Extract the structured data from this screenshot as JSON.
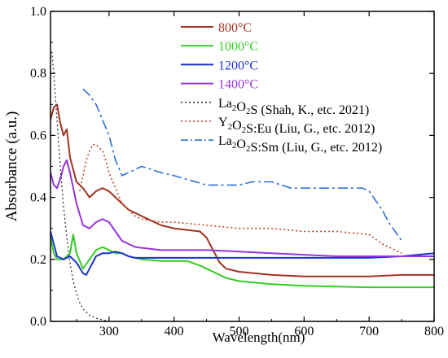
{
  "chart_data": {
    "type": "line",
    "xlabel": "Wavelength(nm)",
    "ylabel": "Absorbance (a.u.)",
    "xlim": [
      210,
      800
    ],
    "ylim": [
      0,
      1.0
    ],
    "xticks": [
      300,
      400,
      500,
      600,
      700,
      800
    ],
    "yticks": [
      0.0,
      0.2,
      0.4,
      0.6,
      0.8,
      1.0
    ],
    "xtick_labels": [
      "300",
      "400",
      "500",
      "600",
      "700",
      "800"
    ],
    "ytick_labels": [
      "0.0",
      "0.2",
      "0.4",
      "0.6",
      "0.8",
      "1.0"
    ],
    "grid": false,
    "legend_position": "top-right",
    "series": [
      {
        "name": "800°C",
        "color": "#a0331f",
        "dash": "solid",
        "width": 2,
        "points": [
          [
            210,
            0.65
          ],
          [
            215,
            0.69
          ],
          [
            220,
            0.7
          ],
          [
            225,
            0.64
          ],
          [
            230,
            0.6
          ],
          [
            235,
            0.62
          ],
          [
            240,
            0.53
          ],
          [
            250,
            0.45
          ],
          [
            260,
            0.43
          ],
          [
            270,
            0.4
          ],
          [
            280,
            0.42
          ],
          [
            290,
            0.43
          ],
          [
            300,
            0.42
          ],
          [
            310,
            0.4
          ],
          [
            320,
            0.38
          ],
          [
            330,
            0.36
          ],
          [
            340,
            0.35
          ],
          [
            350,
            0.34
          ],
          [
            360,
            0.33
          ],
          [
            380,
            0.31
          ],
          [
            400,
            0.3
          ],
          [
            420,
            0.295
          ],
          [
            440,
            0.29
          ],
          [
            450,
            0.27
          ],
          [
            460,
            0.23
          ],
          [
            470,
            0.19
          ],
          [
            480,
            0.17
          ],
          [
            500,
            0.16
          ],
          [
            550,
            0.15
          ],
          [
            600,
            0.145
          ],
          [
            650,
            0.145
          ],
          [
            700,
            0.145
          ],
          [
            750,
            0.15
          ],
          [
            800,
            0.15
          ]
        ]
      },
      {
        "name": "1000°C",
        "color": "#33cc22",
        "dash": "solid",
        "width": 2,
        "points": [
          [
            210,
            0.27
          ],
          [
            215,
            0.22
          ],
          [
            220,
            0.2
          ],
          [
            230,
            0.2
          ],
          [
            240,
            0.22
          ],
          [
            245,
            0.28
          ],
          [
            250,
            0.22
          ],
          [
            260,
            0.17
          ],
          [
            270,
            0.2
          ],
          [
            280,
            0.23
          ],
          [
            290,
            0.24
          ],
          [
            300,
            0.23
          ],
          [
            310,
            0.22
          ],
          [
            320,
            0.22
          ],
          [
            330,
            0.21
          ],
          [
            350,
            0.2
          ],
          [
            380,
            0.195
          ],
          [
            400,
            0.195
          ],
          [
            420,
            0.195
          ],
          [
            440,
            0.18
          ],
          [
            460,
            0.16
          ],
          [
            480,
            0.14
          ],
          [
            500,
            0.13
          ],
          [
            550,
            0.12
          ],
          [
            600,
            0.115
          ],
          [
            650,
            0.112
          ],
          [
            700,
            0.11
          ],
          [
            750,
            0.11
          ],
          [
            800,
            0.11
          ]
        ]
      },
      {
        "name": "1200°C",
        "color": "#1a33cc",
        "dash": "solid",
        "width": 2,
        "points": [
          [
            210,
            0.29
          ],
          [
            215,
            0.25
          ],
          [
            220,
            0.21
          ],
          [
            230,
            0.2
          ],
          [
            240,
            0.21
          ],
          [
            250,
            0.19
          ],
          [
            260,
            0.155
          ],
          [
            265,
            0.15
          ],
          [
            270,
            0.17
          ],
          [
            280,
            0.21
          ],
          [
            290,
            0.22
          ],
          [
            300,
            0.22
          ],
          [
            310,
            0.225
          ],
          [
            320,
            0.22
          ],
          [
            330,
            0.21
          ],
          [
            340,
            0.205
          ],
          [
            350,
            0.205
          ],
          [
            400,
            0.205
          ],
          [
            450,
            0.205
          ],
          [
            500,
            0.205
          ],
          [
            550,
            0.205
          ],
          [
            600,
            0.205
          ],
          [
            650,
            0.205
          ],
          [
            700,
            0.205
          ],
          [
            750,
            0.21
          ],
          [
            800,
            0.22
          ]
        ]
      },
      {
        "name": "1400°C",
        "color": "#9933dd",
        "dash": "solid",
        "width": 2,
        "points": [
          [
            210,
            0.48
          ],
          [
            215,
            0.44
          ],
          [
            220,
            0.43
          ],
          [
            225,
            0.46
          ],
          [
            230,
            0.5
          ],
          [
            235,
            0.52
          ],
          [
            240,
            0.48
          ],
          [
            250,
            0.38
          ],
          [
            260,
            0.31
          ],
          [
            270,
            0.3
          ],
          [
            280,
            0.32
          ],
          [
            290,
            0.33
          ],
          [
            300,
            0.32
          ],
          [
            310,
            0.29
          ],
          [
            320,
            0.26
          ],
          [
            340,
            0.24
          ],
          [
            360,
            0.235
          ],
          [
            380,
            0.23
          ],
          [
            400,
            0.23
          ],
          [
            450,
            0.23
          ],
          [
            500,
            0.225
          ],
          [
            550,
            0.22
          ],
          [
            600,
            0.215
          ],
          [
            650,
            0.21
          ],
          [
            700,
            0.21
          ],
          [
            750,
            0.21
          ],
          [
            800,
            0.21
          ]
        ]
      },
      {
        "name": "La2O2S (Shah, K., etc. 2021)",
        "color": "#333333",
        "dash": "dot",
        "width": 1.3,
        "points": [
          [
            212,
            0.87
          ],
          [
            215,
            0.8
          ],
          [
            220,
            0.65
          ],
          [
            225,
            0.5
          ],
          [
            230,
            0.37
          ],
          [
            235,
            0.27
          ],
          [
            240,
            0.19
          ],
          [
            245,
            0.13
          ],
          [
            250,
            0.09
          ],
          [
            255,
            0.06
          ],
          [
            260,
            0.04
          ],
          [
            270,
            0.02
          ],
          [
            280,
            0.01
          ],
          [
            290,
            0.005
          ],
          [
            300,
            0.0
          ]
        ]
      },
      {
        "name": "Y2O2S:Eu (Liu, G., etc. 2012)",
        "color": "#c0442b",
        "dash": "dot",
        "width": 1.6,
        "points": [
          [
            255,
            0.42
          ],
          [
            260,
            0.47
          ],
          [
            265,
            0.52
          ],
          [
            270,
            0.55
          ],
          [
            275,
            0.57
          ],
          [
            280,
            0.57
          ],
          [
            285,
            0.56
          ],
          [
            290,
            0.55
          ],
          [
            295,
            0.52
          ],
          [
            300,
            0.48
          ],
          [
            310,
            0.43
          ],
          [
            320,
            0.38
          ],
          [
            330,
            0.36
          ],
          [
            340,
            0.34
          ],
          [
            350,
            0.33
          ],
          [
            380,
            0.32
          ],
          [
            400,
            0.32
          ],
          [
            450,
            0.31
          ],
          [
            500,
            0.3
          ],
          [
            550,
            0.3
          ],
          [
            600,
            0.29
          ],
          [
            650,
            0.29
          ],
          [
            700,
            0.28
          ],
          [
            720,
            0.25
          ],
          [
            740,
            0.23
          ],
          [
            750,
            0.22
          ]
        ]
      },
      {
        "name": "La2O2S:Sm (Liu, G., etc. 2012)",
        "color": "#2e6fd6",
        "dash": "dashdot",
        "width": 1.6,
        "points": [
          [
            260,
            0.75
          ],
          [
            270,
            0.73
          ],
          [
            280,
            0.7
          ],
          [
            290,
            0.65
          ],
          [
            300,
            0.6
          ],
          [
            305,
            0.56
          ],
          [
            310,
            0.52
          ],
          [
            320,
            0.47
          ],
          [
            330,
            0.48
          ],
          [
            340,
            0.49
          ],
          [
            350,
            0.5
          ],
          [
            380,
            0.48
          ],
          [
            400,
            0.47
          ],
          [
            450,
            0.44
          ],
          [
            500,
            0.44
          ],
          [
            520,
            0.45
          ],
          [
            550,
            0.45
          ],
          [
            580,
            0.43
          ],
          [
            600,
            0.43
          ],
          [
            650,
            0.43
          ],
          [
            690,
            0.43
          ],
          [
            700,
            0.42
          ],
          [
            710,
            0.39
          ],
          [
            720,
            0.36
          ],
          [
            730,
            0.32
          ],
          [
            740,
            0.29
          ],
          [
            750,
            0.26
          ]
        ]
      }
    ],
    "legend": [
      {
        "label": "800°C",
        "color": "#a0331f",
        "dash": "solid",
        "text_color": "#a0331f"
      },
      {
        "label": "1000°C",
        "color": "#33cc22",
        "dash": "solid",
        "text_color": "#33cc22"
      },
      {
        "label": "1200°C",
        "color": "#1a33cc",
        "dash": "solid",
        "text_color": "#1a33cc"
      },
      {
        "label": "1400°C",
        "color": "#9933dd",
        "dash": "solid",
        "text_color": "#9933dd"
      },
      {
        "label_parts": [
          [
            "La",
            ""
          ],
          [
            "2",
            "sub"
          ],
          [
            "O",
            ""
          ],
          [
            "2",
            "sub"
          ],
          [
            "S (Shah, K., etc. 2021)",
            ""
          ]
        ],
        "color": "#333333",
        "dash": "dot",
        "text_color": "#000000"
      },
      {
        "label_parts": [
          [
            "Y",
            ""
          ],
          [
            "2",
            "sub"
          ],
          [
            "O",
            ""
          ],
          [
            "2",
            "sub"
          ],
          [
            "S:Eu (Liu, G., etc. 2012)",
            ""
          ]
        ],
        "color": "#c0442b",
        "dash": "dot",
        "text_color": "#000000"
      },
      {
        "label_parts": [
          [
            "La",
            ""
          ],
          [
            "2",
            "sub"
          ],
          [
            "O",
            ""
          ],
          [
            "2",
            "sub"
          ],
          [
            "S:Sm (Liu, G., etc. 2012)",
            ""
          ]
        ],
        "color": "#2e6fd6",
        "dash": "dashdot",
        "text_color": "#000000"
      }
    ]
  }
}
